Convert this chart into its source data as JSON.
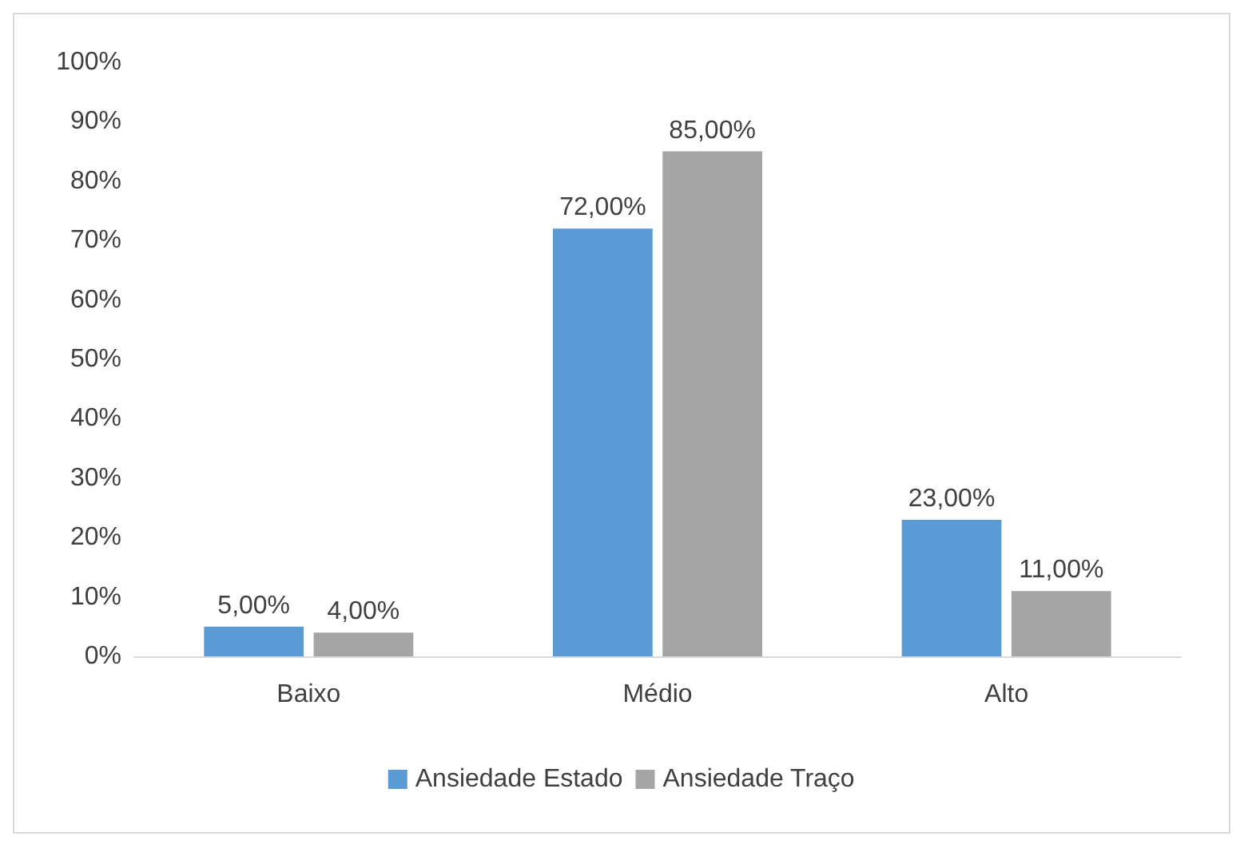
{
  "chart_data": {
    "type": "bar",
    "categories": [
      "Baixo",
      "Médio",
      "Alto"
    ],
    "series": [
      {
        "name": "Ansiedade Estado",
        "color": "#5b9bd5",
        "values": [
          5,
          72,
          23
        ],
        "value_labels": [
          "5,00%",
          "72,00%",
          "23,00%"
        ]
      },
      {
        "name": "Ansiedade Traço",
        "color": "#a5a5a5",
        "values": [
          4,
          85,
          11
        ],
        "value_labels": [
          "4,00%",
          "85,00%",
          "11,00%"
        ]
      }
    ],
    "ylim": [
      0,
      100
    ],
    "yticks": [
      {
        "value": 0,
        "label": "0%"
      },
      {
        "value": 10,
        "label": "10%"
      },
      {
        "value": 20,
        "label": "20%"
      },
      {
        "value": 30,
        "label": "30%"
      },
      {
        "value": 40,
        "label": "40%"
      },
      {
        "value": 50,
        "label": "50%"
      },
      {
        "value": 60,
        "label": "60%"
      },
      {
        "value": 70,
        "label": "70%"
      },
      {
        "value": 80,
        "label": "80%"
      },
      {
        "value": 90,
        "label": "90%"
      },
      {
        "value": 100,
        "label": "100%"
      }
    ],
    "grid": false,
    "legend": "bottom"
  }
}
